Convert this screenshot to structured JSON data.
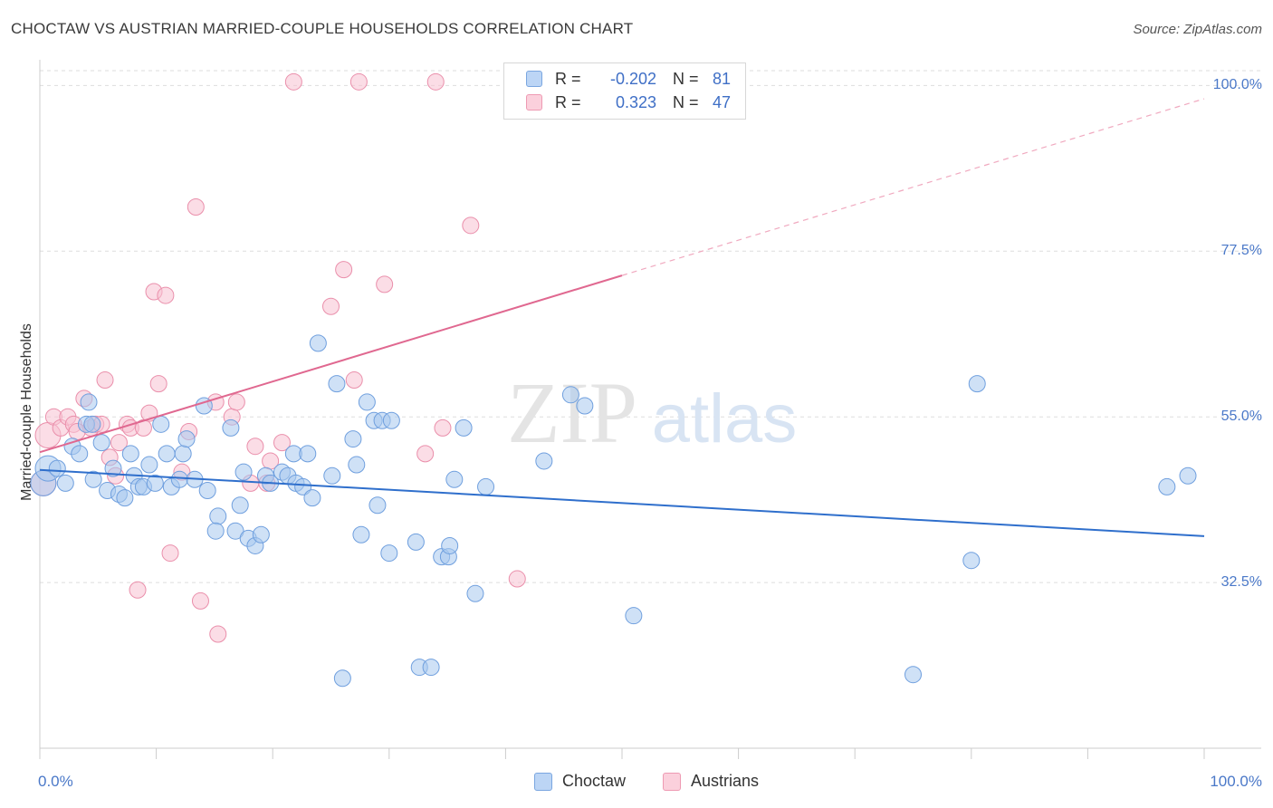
{
  "title": "CHOCTAW VS AUSTRIAN MARRIED-COUPLE HOUSEHOLDS CORRELATION CHART",
  "source": "Source: ZipAtlas.com",
  "watermark": {
    "zip": "ZIP",
    "atlas": "atlas"
  },
  "colors": {
    "blue": "#a8c8ef",
    "blue_stroke": "#6f9fde",
    "blue_line": "#2f6fcc",
    "pink": "#f7c1d1",
    "pink_stroke": "#ea8fab",
    "pink_line": "#e06890",
    "axis_label": "#4a78c8",
    "grid": "#dddddd"
  },
  "legend_top": {
    "rows": [
      {
        "r_label": "R =",
        "r_value": "-0.202",
        "n_label": "N =",
        "n_value": "81"
      },
      {
        "r_label": "R =",
        "r_value": "0.323",
        "n_label": "N =",
        "n_value": "47"
      }
    ]
  },
  "legend_bottom": {
    "items": [
      "Choctaw",
      "Austrians"
    ]
  },
  "chart_data": {
    "type": "scatter",
    "title": "CHOCTAW VS AUSTRIAN MARRIED-COUPLE HOUSEHOLDS CORRELATION CHART",
    "xlabel": "",
    "ylabel": "Married-couple Households",
    "xlim": [
      0,
      100
    ],
    "ylim": [
      10,
      103
    ],
    "x_tick_labels": [
      "0.0%",
      "100.0%"
    ],
    "y_ticks": [
      32.5,
      55.0,
      77.5,
      100.0
    ],
    "y_tick_labels": [
      "32.5%",
      "55.0%",
      "77.5%",
      "100.0%"
    ],
    "grid": true,
    "legend_placement": "top-center",
    "series": [
      {
        "name": "Choctaw",
        "r": -0.202,
        "n": 81,
        "trend": {
          "x": [
            0,
            100
          ],
          "y": [
            47.8,
            38.8
          ],
          "dashed_from": null
        },
        "points": [
          [
            0.3,
            46
          ],
          [
            0.7,
            48
          ],
          [
            1.5,
            48
          ],
          [
            2.2,
            46
          ],
          [
            2.8,
            51
          ],
          [
            3.4,
            50
          ],
          [
            4.0,
            54
          ],
          [
            4.2,
            57
          ],
          [
            4.5,
            54
          ],
          [
            4.6,
            46.5
          ],
          [
            5.3,
            51.5
          ],
          [
            5.8,
            45
          ],
          [
            6.3,
            48
          ],
          [
            6.8,
            44.5
          ],
          [
            7.3,
            44
          ],
          [
            7.8,
            50
          ],
          [
            8.1,
            47
          ],
          [
            8.5,
            45.5
          ],
          [
            8.9,
            45.5
          ],
          [
            9.4,
            48.5
          ],
          [
            9.9,
            46
          ],
          [
            10.4,
            54
          ],
          [
            10.9,
            50
          ],
          [
            11.3,
            45.5
          ],
          [
            12.0,
            46.5
          ],
          [
            12.3,
            50
          ],
          [
            12.6,
            52
          ],
          [
            13.3,
            46.5
          ],
          [
            14.1,
            56.5
          ],
          [
            14.4,
            45
          ],
          [
            15.3,
            41.5
          ],
          [
            15.1,
            39.5
          ],
          [
            16.4,
            53.5
          ],
          [
            16.8,
            39.5
          ],
          [
            17.2,
            43
          ],
          [
            17.5,
            47.5
          ],
          [
            17.9,
            38.5
          ],
          [
            18.5,
            37.5
          ],
          [
            19.0,
            39
          ],
          [
            19.4,
            47
          ],
          [
            19.8,
            46
          ],
          [
            20.8,
            47.5
          ],
          [
            21.3,
            47
          ],
          [
            21.8,
            50
          ],
          [
            22.0,
            46
          ],
          [
            22.6,
            45.5
          ],
          [
            23.0,
            50
          ],
          [
            23.4,
            44
          ],
          [
            23.9,
            65
          ],
          [
            25.1,
            47
          ],
          [
            25.5,
            59.5
          ],
          [
            26.0,
            19.5
          ],
          [
            26.9,
            52
          ],
          [
            27.2,
            48.5
          ],
          [
            27.6,
            39
          ],
          [
            28.1,
            57
          ],
          [
            28.7,
            54.5
          ],
          [
            29.0,
            43
          ],
          [
            29.4,
            54.5
          ],
          [
            30.2,
            54.5
          ],
          [
            30.0,
            36.5
          ],
          [
            32.3,
            38
          ],
          [
            32.6,
            21
          ],
          [
            33.6,
            21
          ],
          [
            34.5,
            36
          ],
          [
            35.1,
            36
          ],
          [
            35.2,
            37.5
          ],
          [
            35.6,
            46.5
          ],
          [
            36.4,
            53.5
          ],
          [
            37.4,
            31
          ],
          [
            38.3,
            45.5
          ],
          [
            43.3,
            49
          ],
          [
            45.6,
            58
          ],
          [
            46.8,
            56.5
          ],
          [
            51.0,
            28
          ],
          [
            75.0,
            20
          ],
          [
            80.0,
            35.5
          ],
          [
            80.5,
            59.5
          ],
          [
            96.8,
            45.5
          ],
          [
            98.6,
            47
          ]
        ]
      },
      {
        "name": "Austrians",
        "r": 0.323,
        "n": 47,
        "trend": {
          "x": [
            0,
            100
          ],
          "y": [
            50.2,
            98.2
          ],
          "dashed_from": 50
        },
        "points": [
          [
            0.3,
            46
          ],
          [
            0.7,
            52.5
          ],
          [
            1.2,
            55
          ],
          [
            1.8,
            53.5
          ],
          [
            2.4,
            55
          ],
          [
            2.9,
            54
          ],
          [
            3.2,
            53
          ],
          [
            3.8,
            57.5
          ],
          [
            4.4,
            53.5
          ],
          [
            4.8,
            54
          ],
          [
            5.3,
            54
          ],
          [
            5.6,
            60
          ],
          [
            6.0,
            49.5
          ],
          [
            6.5,
            47
          ],
          [
            6.8,
            51.5
          ],
          [
            7.5,
            54
          ],
          [
            7.8,
            53.5
          ],
          [
            8.4,
            31.5
          ],
          [
            8.9,
            53.5
          ],
          [
            9.4,
            55.5
          ],
          [
            9.8,
            72
          ],
          [
            10.2,
            59.5
          ],
          [
            10.8,
            71.5
          ],
          [
            11.2,
            36.5
          ],
          [
            12.2,
            47.5
          ],
          [
            12.8,
            53
          ],
          [
            13.4,
            83.5
          ],
          [
            13.8,
            30
          ],
          [
            15.1,
            57
          ],
          [
            15.3,
            25.5
          ],
          [
            16.5,
            55
          ],
          [
            16.9,
            57
          ],
          [
            18.1,
            46
          ],
          [
            18.5,
            51
          ],
          [
            19.5,
            46
          ],
          [
            19.8,
            49
          ],
          [
            20.8,
            51.5
          ],
          [
            21.8,
            100.5
          ],
          [
            25.0,
            70
          ],
          [
            26.1,
            75
          ],
          [
            27.0,
            60
          ],
          [
            27.4,
            100.5
          ],
          [
            29.6,
            73
          ],
          [
            33.1,
            50
          ],
          [
            34.0,
            100.5
          ],
          [
            34.6,
            53.5
          ],
          [
            37.0,
            81
          ],
          [
            41.0,
            33
          ]
        ]
      }
    ]
  }
}
